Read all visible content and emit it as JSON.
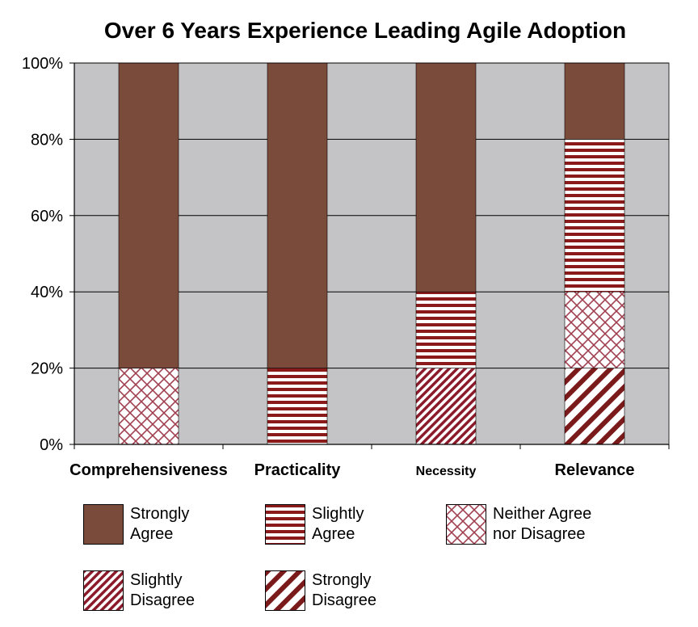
{
  "chart_data": {
    "type": "bar",
    "stacked": true,
    "title": "Over 6 Years Experience Leading Agile Adoption",
    "xlabel": "",
    "ylabel": "",
    "ylim": [
      0,
      100
    ],
    "yticks": [
      "0%",
      "20%",
      "40%",
      "60%",
      "80%",
      "100%"
    ],
    "grid": true,
    "legend_position": "bottom",
    "categories": [
      "Comprehensiveness",
      "Practicality",
      "Necessity",
      "Relevance"
    ],
    "series": [
      {
        "name": "Strongly Disagree",
        "pattern": "wide-diagonal",
        "values": [
          0,
          0,
          0,
          20
        ]
      },
      {
        "name": "Slightly Disagree",
        "pattern": "narrow-diagonal",
        "values": [
          0,
          0,
          20,
          0
        ]
      },
      {
        "name": "Neither Agree nor Disagree",
        "pattern": "crosshatch",
        "values": [
          20,
          0,
          0,
          20
        ]
      },
      {
        "name": "Slightly Agree",
        "pattern": "horizontal-stripes",
        "values": [
          0,
          20,
          20,
          40
        ]
      },
      {
        "name": "Strongly Agree",
        "pattern": "solid",
        "values": [
          80,
          80,
          60,
          20
        ]
      }
    ]
  },
  "legend": [
    {
      "label": "Strongly\nAgree",
      "pattern": "solid"
    },
    {
      "label": "Slightly\nAgree",
      "pattern": "horizontal-stripes"
    },
    {
      "label": "Neither Agree\nnor Disagree",
      "pattern": "crosshatch"
    },
    {
      "label": "Slightly\nDisagree",
      "pattern": "narrow-diagonal"
    },
    {
      "label": "Strongly\nDisagree",
      "pattern": "wide-diagonal"
    }
  ],
  "colors": {
    "plot_background": "#c4c4c6",
    "bar_brown": "#7a4a3a",
    "stripe_red": "#8b1a1a",
    "diagonal_brown": "#8b4a1a",
    "crosshatch": "#a04050",
    "grid": "#000000"
  }
}
